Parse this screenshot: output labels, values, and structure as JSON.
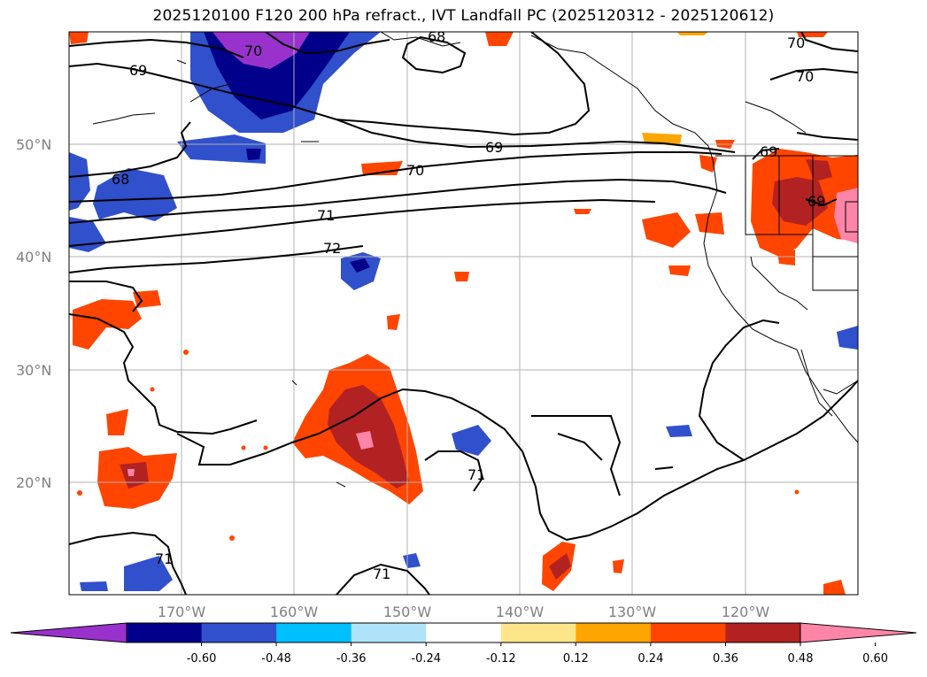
{
  "title": "2025120100 F120 200 hPa refract., IVT Landfall PC (2025120312 - 2025120612)",
  "lat_labels": [
    "50°N",
    "40°N",
    "30°N",
    "20°N"
  ],
  "lon_labels": [
    "170°W",
    "160°W",
    "150°W",
    "140°W",
    "130°W",
    "120°W"
  ],
  "contour_labels": [
    "70",
    "68",
    "69",
    "70",
    "70",
    "69",
    "70",
    "68",
    "71",
    "72",
    "69",
    "69",
    "71",
    "71",
    "71"
  ],
  "colorbar": {
    "tick_labels": [
      "-0.60",
      "-0.48",
      "-0.36",
      "-0.24",
      "-0.12",
      "0.12",
      "0.24",
      "0.36",
      "0.48",
      "0.60"
    ],
    "colors": [
      "#9932cc",
      "#00008b",
      "#3050cc",
      "#00bfff",
      "#aee3fa",
      "#ffffff",
      "#fde68a",
      "#ffa500",
      "#ff4500",
      "#b22222",
      "#ff85a8"
    ]
  }
}
